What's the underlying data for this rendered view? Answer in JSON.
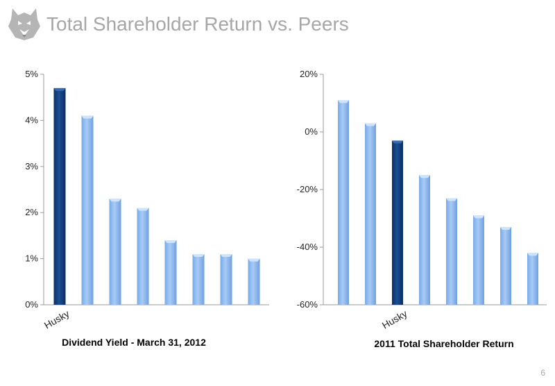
{
  "page": {
    "title": "Total Shareholder Return vs. Peers",
    "page_number": "6",
    "logo_icon": "husky-dog-logo-icon"
  },
  "colors": {
    "bar_light": "#8fb9ef",
    "bar_light_top": "#cfe3fb",
    "bar_dark": "#0f3b78",
    "axis": "#9a9a9a",
    "title": "#a6a6a6"
  },
  "chart_data": [
    {
      "type": "bar",
      "title": "Dividend Yield - March 31, 2012",
      "categories": [
        "Husky",
        "",
        "",
        "",
        "",
        "",
        "",
        ""
      ],
      "values": [
        4.7,
        4.1,
        2.3,
        2.1,
        1.4,
        1.1,
        1.1,
        1.0
      ],
      "highlight_index": 0,
      "ylim": [
        0,
        5
      ],
      "yticks": [
        0,
        1,
        2,
        3,
        4,
        5
      ],
      "ytick_labels": [
        "0%",
        "1%",
        "2%",
        "3%",
        "4%",
        "5%"
      ],
      "grid": false
    },
    {
      "type": "bar",
      "title": "2011 Total Shareholder Return",
      "categories": [
        "",
        "",
        "Husky",
        "",
        "",
        "",
        "",
        ""
      ],
      "values": [
        11,
        3,
        -3,
        -15,
        -23,
        -29,
        -33,
        -42
      ],
      "highlight_index": 2,
      "ylim": [
        -60,
        20
      ],
      "yticks": [
        -60,
        -40,
        -20,
        0,
        20
      ],
      "ytick_labels": [
        "-60%",
        "-40%",
        "-20%",
        "0%",
        "20%"
      ],
      "grid": false
    }
  ]
}
